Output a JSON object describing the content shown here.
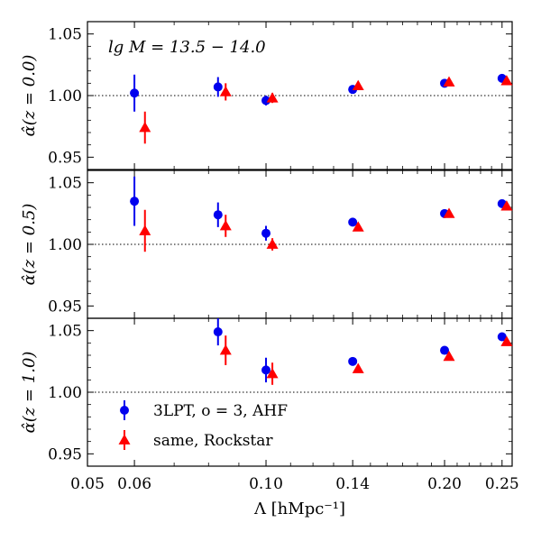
{
  "chart_data": {
    "type": "scatter",
    "annotation": "lg M = 13.5 − 14.0",
    "xlabel": "Λ [hMpc⁻¹]",
    "x_scale": "log",
    "xlim": [
      0.05,
      0.26
    ],
    "x_ticks": [
      0.05,
      0.06,
      0.1,
      0.14,
      0.2,
      0.25
    ],
    "x_tick_labels": [
      "0.05",
      "0.06",
      "0.10",
      "0.14",
      "0.20",
      "0.25"
    ],
    "ylim": [
      0.94,
      1.06
    ],
    "y_ticks": [
      0.95,
      1.0,
      1.05
    ],
    "y_tick_labels": [
      "0.95",
      "1.00",
      "1.05"
    ],
    "reference_line": 1.0,
    "legend": {
      "location": "lower-left",
      "entries": [
        {
          "label": "3LPT, o = 3, AHF",
          "color": "#0000ee",
          "marker": "circle"
        },
        {
          "label": "same, Rockstar",
          "color": "#ff0000",
          "marker": "triangle"
        }
      ]
    },
    "panels": [
      {
        "ylabel": "α̂(z = 0.0)",
        "series": [
          {
            "name": "3LPT, o = 3, AHF",
            "color": "#0000ee",
            "marker": "circle",
            "points": [
              [
                0.06,
                1.002,
                0.015
              ],
              [
                0.083,
                1.007,
                0.008
              ],
              [
                0.1,
                0.996,
                0.004
              ],
              [
                0.14,
                1.005,
                0.002
              ],
              [
                0.2,
                1.01,
                0.002
              ],
              [
                0.25,
                1.014,
                0.002
              ]
            ]
          },
          {
            "name": "same, Rockstar",
            "color": "#ff0000",
            "marker": "triangle",
            "points": [
              [
                0.0625,
                0.974,
                0.013
              ],
              [
                0.0855,
                1.003,
                0.007
              ],
              [
                0.1025,
                0.998,
                0.004
              ],
              [
                0.143,
                1.008,
                0.002
              ],
              [
                0.2035,
                1.011,
                0.002
              ],
              [
                0.2545,
                1.012,
                0.002
              ]
            ]
          }
        ]
      },
      {
        "ylabel": "α̂(z = 0.5)",
        "series": [
          {
            "name": "3LPT, o = 3, AHF",
            "color": "#0000ee",
            "marker": "circle",
            "points": [
              [
                0.06,
                1.035,
                0.02
              ],
              [
                0.083,
                1.024,
                0.01
              ],
              [
                0.1,
                1.009,
                0.006
              ],
              [
                0.14,
                1.018,
                0.003
              ],
              [
                0.2,
                1.025,
                0.002
              ],
              [
                0.25,
                1.033,
                0.002
              ]
            ]
          },
          {
            "name": "same, Rockstar",
            "color": "#ff0000",
            "marker": "triangle",
            "points": [
              [
                0.0625,
                1.011,
                0.017
              ],
              [
                0.0855,
                1.015,
                0.009
              ],
              [
                0.1025,
                1.0,
                0.005
              ],
              [
                0.143,
                1.014,
                0.003
              ],
              [
                0.2035,
                1.025,
                0.002
              ],
              [
                0.2545,
                1.031,
                0.002
              ]
            ]
          }
        ]
      },
      {
        "ylabel": "α̂(z = 1.0)",
        "series": [
          {
            "name": "3LPT, o = 3, AHF",
            "color": "#0000ee",
            "marker": "circle",
            "points": [
              [
                0.083,
                1.049,
                0.011
              ],
              [
                0.1,
                1.018,
                0.01
              ],
              [
                0.14,
                1.025,
                0.003
              ],
              [
                0.2,
                1.034,
                0.002
              ],
              [
                0.25,
                1.045,
                0.002
              ]
            ]
          },
          {
            "name": "same, Rockstar",
            "color": "#ff0000",
            "marker": "triangle",
            "points": [
              [
                0.0855,
                1.034,
                0.012
              ],
              [
                0.1025,
                1.015,
                0.009
              ],
              [
                0.143,
                1.019,
                0.003
              ],
              [
                0.2035,
                1.029,
                0.002
              ],
              [
                0.2545,
                1.041,
                0.002
              ]
            ]
          }
        ]
      }
    ]
  }
}
